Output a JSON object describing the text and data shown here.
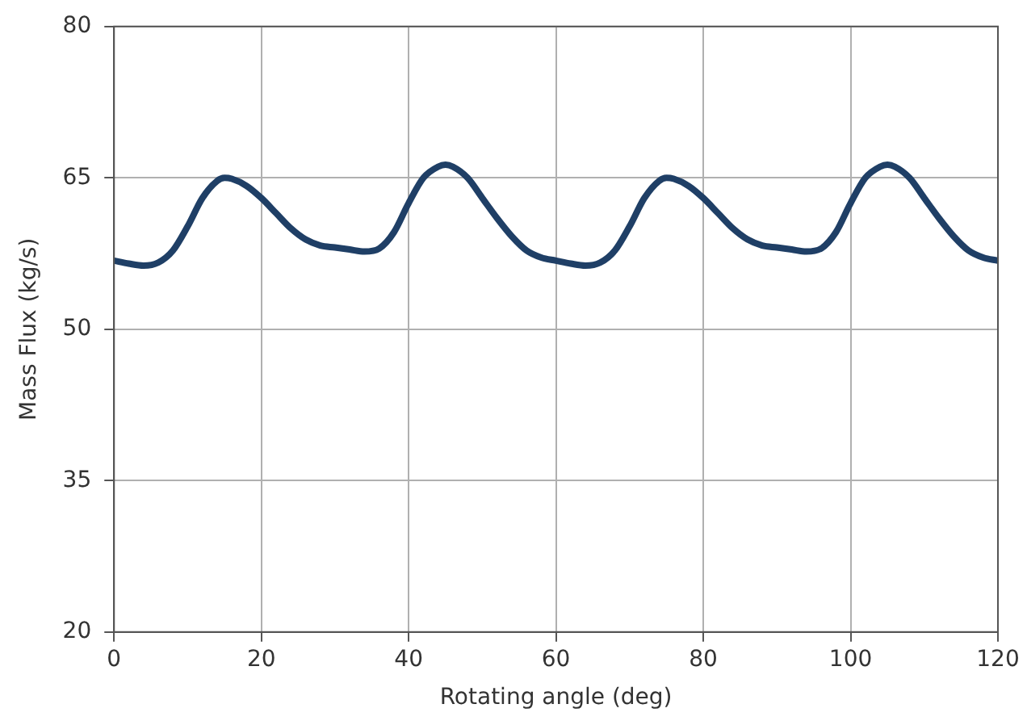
{
  "chart_data": {
    "type": "line",
    "xlabel": "Rotating angle (deg)",
    "ylabel": "Mass Flux (kg/s)",
    "x": [
      0,
      2,
      4,
      6,
      8,
      10,
      12,
      14,
      15,
      16,
      18,
      20,
      22,
      24,
      26,
      28,
      30,
      32,
      34,
      36,
      38,
      40,
      42,
      44,
      45,
      46,
      48,
      50,
      52,
      54,
      56,
      58,
      60,
      62,
      64,
      66,
      68,
      70,
      72,
      74,
      75,
      76,
      78,
      80,
      82,
      84,
      86,
      88,
      90,
      92,
      94,
      96,
      98,
      100,
      102,
      104,
      105,
      106,
      108,
      110,
      112,
      114,
      116,
      118,
      120
    ],
    "series": [
      {
        "color": "#1f3f66",
        "values": [
          56.8,
          56.5,
          56.3,
          56.6,
          57.8,
          60.2,
          63.0,
          64.7,
          65.0,
          64.9,
          64.2,
          63.0,
          61.5,
          60.0,
          58.9,
          58.3,
          58.1,
          57.9,
          57.7,
          58.0,
          59.6,
          62.5,
          65.0,
          66.1,
          66.3,
          66.1,
          65.0,
          63.0,
          61.0,
          59.2,
          57.8,
          57.1,
          56.8,
          56.5,
          56.3,
          56.6,
          57.8,
          60.2,
          63.0,
          64.7,
          65.0,
          64.9,
          64.2,
          63.0,
          61.5,
          60.0,
          58.9,
          58.3,
          58.1,
          57.9,
          57.7,
          58.0,
          59.6,
          62.5,
          65.0,
          66.1,
          66.3,
          66.1,
          65.0,
          63.0,
          61.0,
          59.2,
          57.8,
          57.1,
          56.8
        ]
      }
    ],
    "xlim": [
      0,
      120
    ],
    "xticks": [
      0,
      20,
      40,
      60,
      80,
      100,
      120
    ],
    "ylim": [
      20,
      80
    ],
    "yticks": [
      20,
      35,
      50,
      65,
      80
    ],
    "grid": true,
    "legend": false,
    "marker": "none",
    "line_style": "solid"
  }
}
